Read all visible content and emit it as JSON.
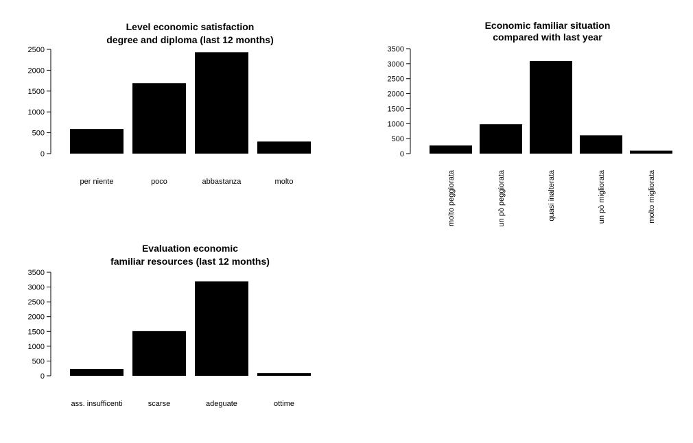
{
  "chart_data": [
    {
      "type": "bar",
      "title": [
        "Level economic satisfaction",
        "degree and diploma (last 12 months)"
      ],
      "categories": [
        "per niente",
        "poco",
        "abbastanza",
        "molto"
      ],
      "values": [
        590,
        1690,
        2430,
        290
      ],
      "ylim": [
        0,
        2500
      ],
      "yticks": [
        0,
        500,
        1000,
        1500,
        2000,
        2500
      ],
      "xlabel_orientation": "horizontal",
      "bar_color": "#000000",
      "grid": false
    },
    {
      "type": "bar",
      "title": [
        "Economic familiar situation",
        "compared with last year"
      ],
      "categories": [
        "molto peggiorata",
        "un pò peggiorata",
        "quasi inalterata",
        "un pò migliorata",
        "molto migliorata"
      ],
      "values": [
        270,
        980,
        3090,
        610,
        100
      ],
      "ylim": [
        0,
        3500
      ],
      "yticks": [
        0,
        500,
        1000,
        1500,
        2000,
        2500,
        3000,
        3500
      ],
      "xlabel_orientation": "vertical",
      "bar_color": "#000000",
      "grid": false
    },
    {
      "type": "bar",
      "title": [
        "Evaluation economic",
        "familiar resources (last 12 months)"
      ],
      "categories": [
        "ass. insufficenti",
        "scarse",
        "adeguate",
        "ottime"
      ],
      "values": [
        230,
        1510,
        3190,
        90
      ],
      "ylim": [
        0,
        3500
      ],
      "yticks": [
        0,
        500,
        1000,
        1500,
        2000,
        2500,
        3000,
        3500
      ],
      "xlabel_orientation": "horizontal",
      "bar_color": "#000000",
      "grid": false
    }
  ]
}
